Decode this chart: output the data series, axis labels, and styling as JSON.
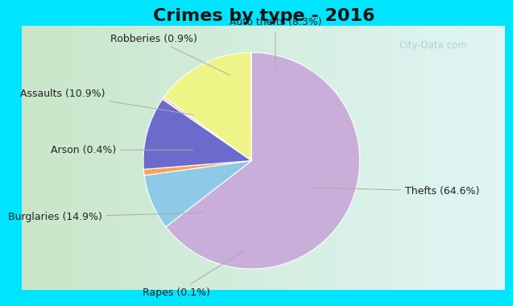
{
  "title": "Crimes by type - 2016",
  "labels": [
    "Thefts",
    "Auto thefts",
    "Robberies",
    "Assaults",
    "Arson",
    "Burglaries",
    "Rapes"
  ],
  "percentages": [
    64.6,
    8.3,
    0.9,
    10.9,
    0.4,
    14.9,
    0.1
  ],
  "colors": [
    "#c9aed9",
    "#8ecae6",
    "#f4a55a",
    "#6b6bcc",
    "#f7c5c5",
    "#eef586",
    "#d0f0c0"
  ],
  "label_texts": [
    "Thefts (64.6%)",
    "Auto thefts (8.3%)",
    "Robberies (0.9%)",
    "Assaults (10.9%)",
    "Arson (0.4%)",
    "Burglaries (14.9%)",
    "Rapes (0.1%)"
  ],
  "bg_cyan": "#00e5ff",
  "bg_main_left": "#c8e6c9",
  "bg_main_right": "#e8f5f5",
  "title_fontsize": 16,
  "label_fontsize": 9,
  "watermark": "City-Data.com"
}
